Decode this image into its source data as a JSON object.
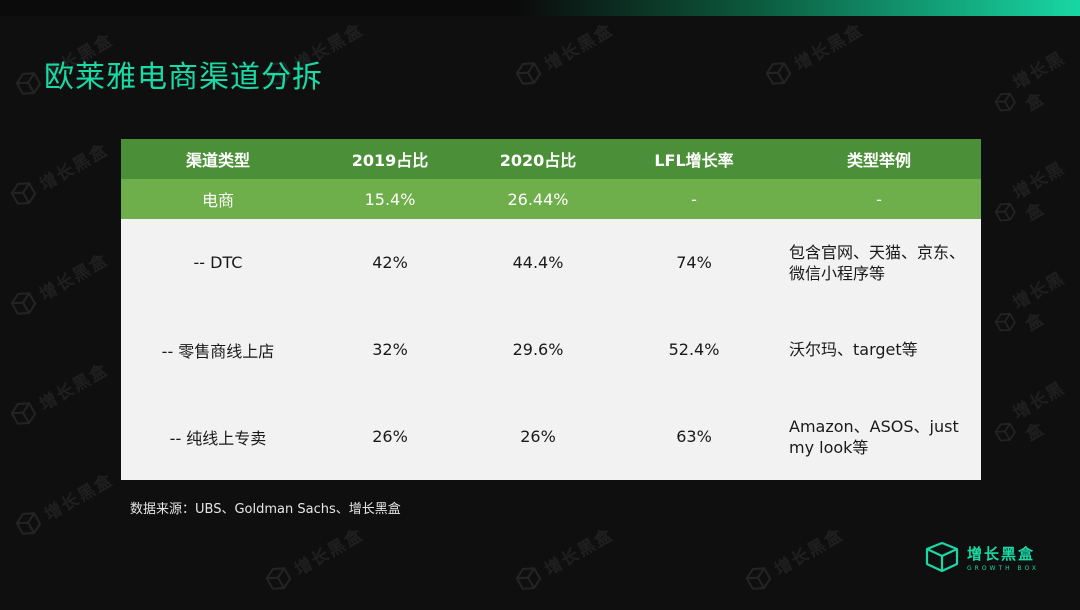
{
  "slide": {
    "title": "欧莱雅电商渠道分拆",
    "source": "数据来源：UBS、Goldman Sachs、增长黑盒"
  },
  "table": {
    "headers": [
      "渠道类型",
      "2019占比",
      "2020占比",
      "LFL增长率",
      "类型举例"
    ],
    "summary_row": [
      "电商",
      "15.4%",
      "26.44%",
      "-",
      "-"
    ],
    "rows": [
      {
        "channel": "-- DTC",
        "share_2019": "42%",
        "share_2020": "44.4%",
        "lfl": "74%",
        "examples": [
          "包含官网、天猫、京东、",
          "微信小程序等"
        ]
      },
      {
        "channel": "-- 零售商线上店",
        "share_2019": "32%",
        "share_2020": "29.6%",
        "lfl": "52.4%",
        "examples": [
          "沃尔玛、target等"
        ]
      },
      {
        "channel": "-- 纯线上专卖",
        "share_2019": "26%",
        "share_2020": "26%",
        "lfl": "63%",
        "examples": [
          "Amazon、ASOS、just",
          "my look等"
        ]
      }
    ]
  },
  "brand": {
    "name": "增长黑盒",
    "subtitle": "GROWTH BOX",
    "logo_icon": "cube-logo-icon"
  },
  "watermark": {
    "text": "增长黑盒",
    "icon": "cube-logo-icon"
  },
  "colors": {
    "background": "#0f0f0f",
    "accent": "#19d9a5",
    "header_green": "#4b8f38",
    "summary_green": "#6eae4b",
    "body_row": "#f2f2f2"
  }
}
